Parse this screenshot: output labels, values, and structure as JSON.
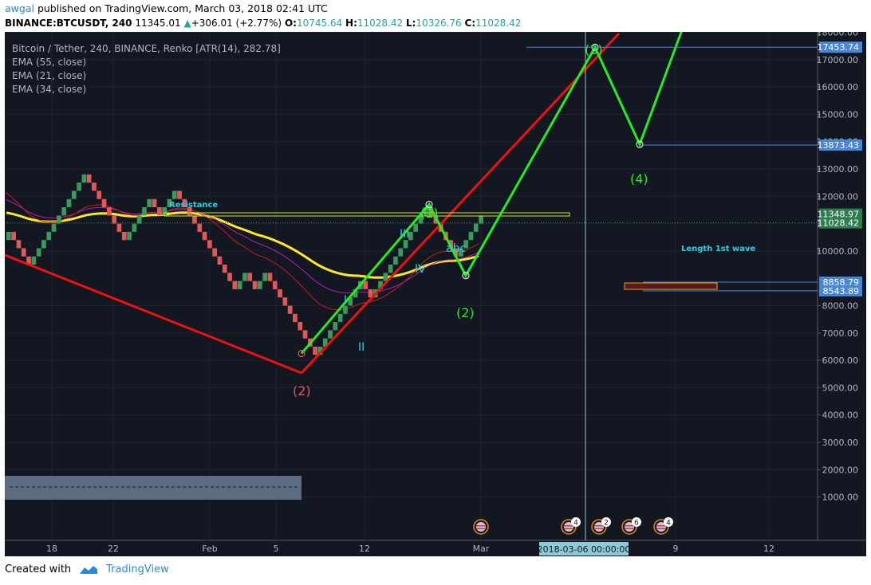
{
  "header": {
    "publisher": "awgal",
    "published_text": "published on TradingView.com, March 03, 2018 02:41 UTC",
    "symbol": "BINANCE:BTCUSDT, 240",
    "price": "11345.01",
    "change": "+306.01 (+2.77%)",
    "open_label": "O:",
    "open": "10745.64",
    "high_label": "H:",
    "high": "11028.42",
    "low_label": "L:",
    "low": "10326.76",
    "close_label": "C:",
    "close": "11028.42"
  },
  "legend": {
    "main": "Bitcoin / Tether, 240, BINANCE, Renko [ATR(14), 282.78]",
    "ema55": "EMA (55, close)",
    "ema21": "EMA (21, close)",
    "ema34": "EMA (34, close)"
  },
  "footer": {
    "created_with": "Created with",
    "brand": "TradingView"
  },
  "colors": {
    "background": "#131722",
    "up_brick": "#3a9a5b",
    "down_brick": "#e05858",
    "ema55": "#ffe922",
    "ema21": "#c71c1c",
    "ema34": "#b420b4",
    "wave": "#22ee22",
    "trendline": "#ee1111",
    "roman": "#22d3e6",
    "price_tag": "#4a86d8"
  },
  "chart_data": {
    "type": "line",
    "title": "Bitcoin / Tether, 240, BINANCE, Renko [ATR(14), 282.78]",
    "y_ticks": [
      "1000.00",
      "2000.00",
      "3000.00",
      "4000.00",
      "5000.00",
      "6000.00",
      "7000.00",
      "8000.00",
      "10000.00",
      "11000.00",
      "12000.00",
      "13000.00",
      "14000.00",
      "15000.00",
      "16000.00",
      "17000.00",
      "18000.00"
    ],
    "ylim": [
      200,
      19200
    ],
    "x_ticks": [
      "18",
      "22",
      "Feb",
      "5",
      "12",
      "Mar",
      "9",
      "12"
    ],
    "price_tags": [
      {
        "value": 17453.74,
        "label": "17453.74",
        "color": "#4a86d8"
      },
      {
        "value": 13873.43,
        "label": "13873.43",
        "color": "#4a86d8"
      },
      {
        "value": 11348.97,
        "label": "11348.97",
        "color": "#2e7d4f"
      },
      {
        "value": 11028.42,
        "label": "11028.42",
        "color": "#2e7d4f"
      },
      {
        "value": 8858.79,
        "label": "8858.79",
        "color": "#4a86d8"
      },
      {
        "value": 8543.89,
        "label": "8543.89",
        "color": "#4a86d8"
      }
    ],
    "crosshair_time": "2018-03-06 00:00:00",
    "annotations": {
      "resistance": "Resistance",
      "length_first_wave": "Length 1st wave",
      "wave_1": "(1)",
      "wave_2a": "(2)",
      "wave_2b": "(2)",
      "wave_3": "(3)",
      "wave_4": "(4)",
      "sub_I": "I",
      "sub_II": "II",
      "sub_III": "III",
      "sub_IV": "IV",
      "abc": "abc"
    },
    "events": [
      {
        "badge": ""
      },
      {
        "badge": "4"
      },
      {
        "badge": "2"
      },
      {
        "badge": "6"
      },
      {
        "badge": "4"
      }
    ],
    "wave_projection": [
      {
        "label": "(2)",
        "value": 6250
      },
      {
        "label": "(1)",
        "value": 11700
      },
      {
        "label": "(2)",
        "value": 9100
      },
      {
        "label": "(3)",
        "value": 17450
      },
      {
        "label": "(4)",
        "value": 13900
      },
      {
        "label": "",
        "value": 19100
      }
    ]
  }
}
